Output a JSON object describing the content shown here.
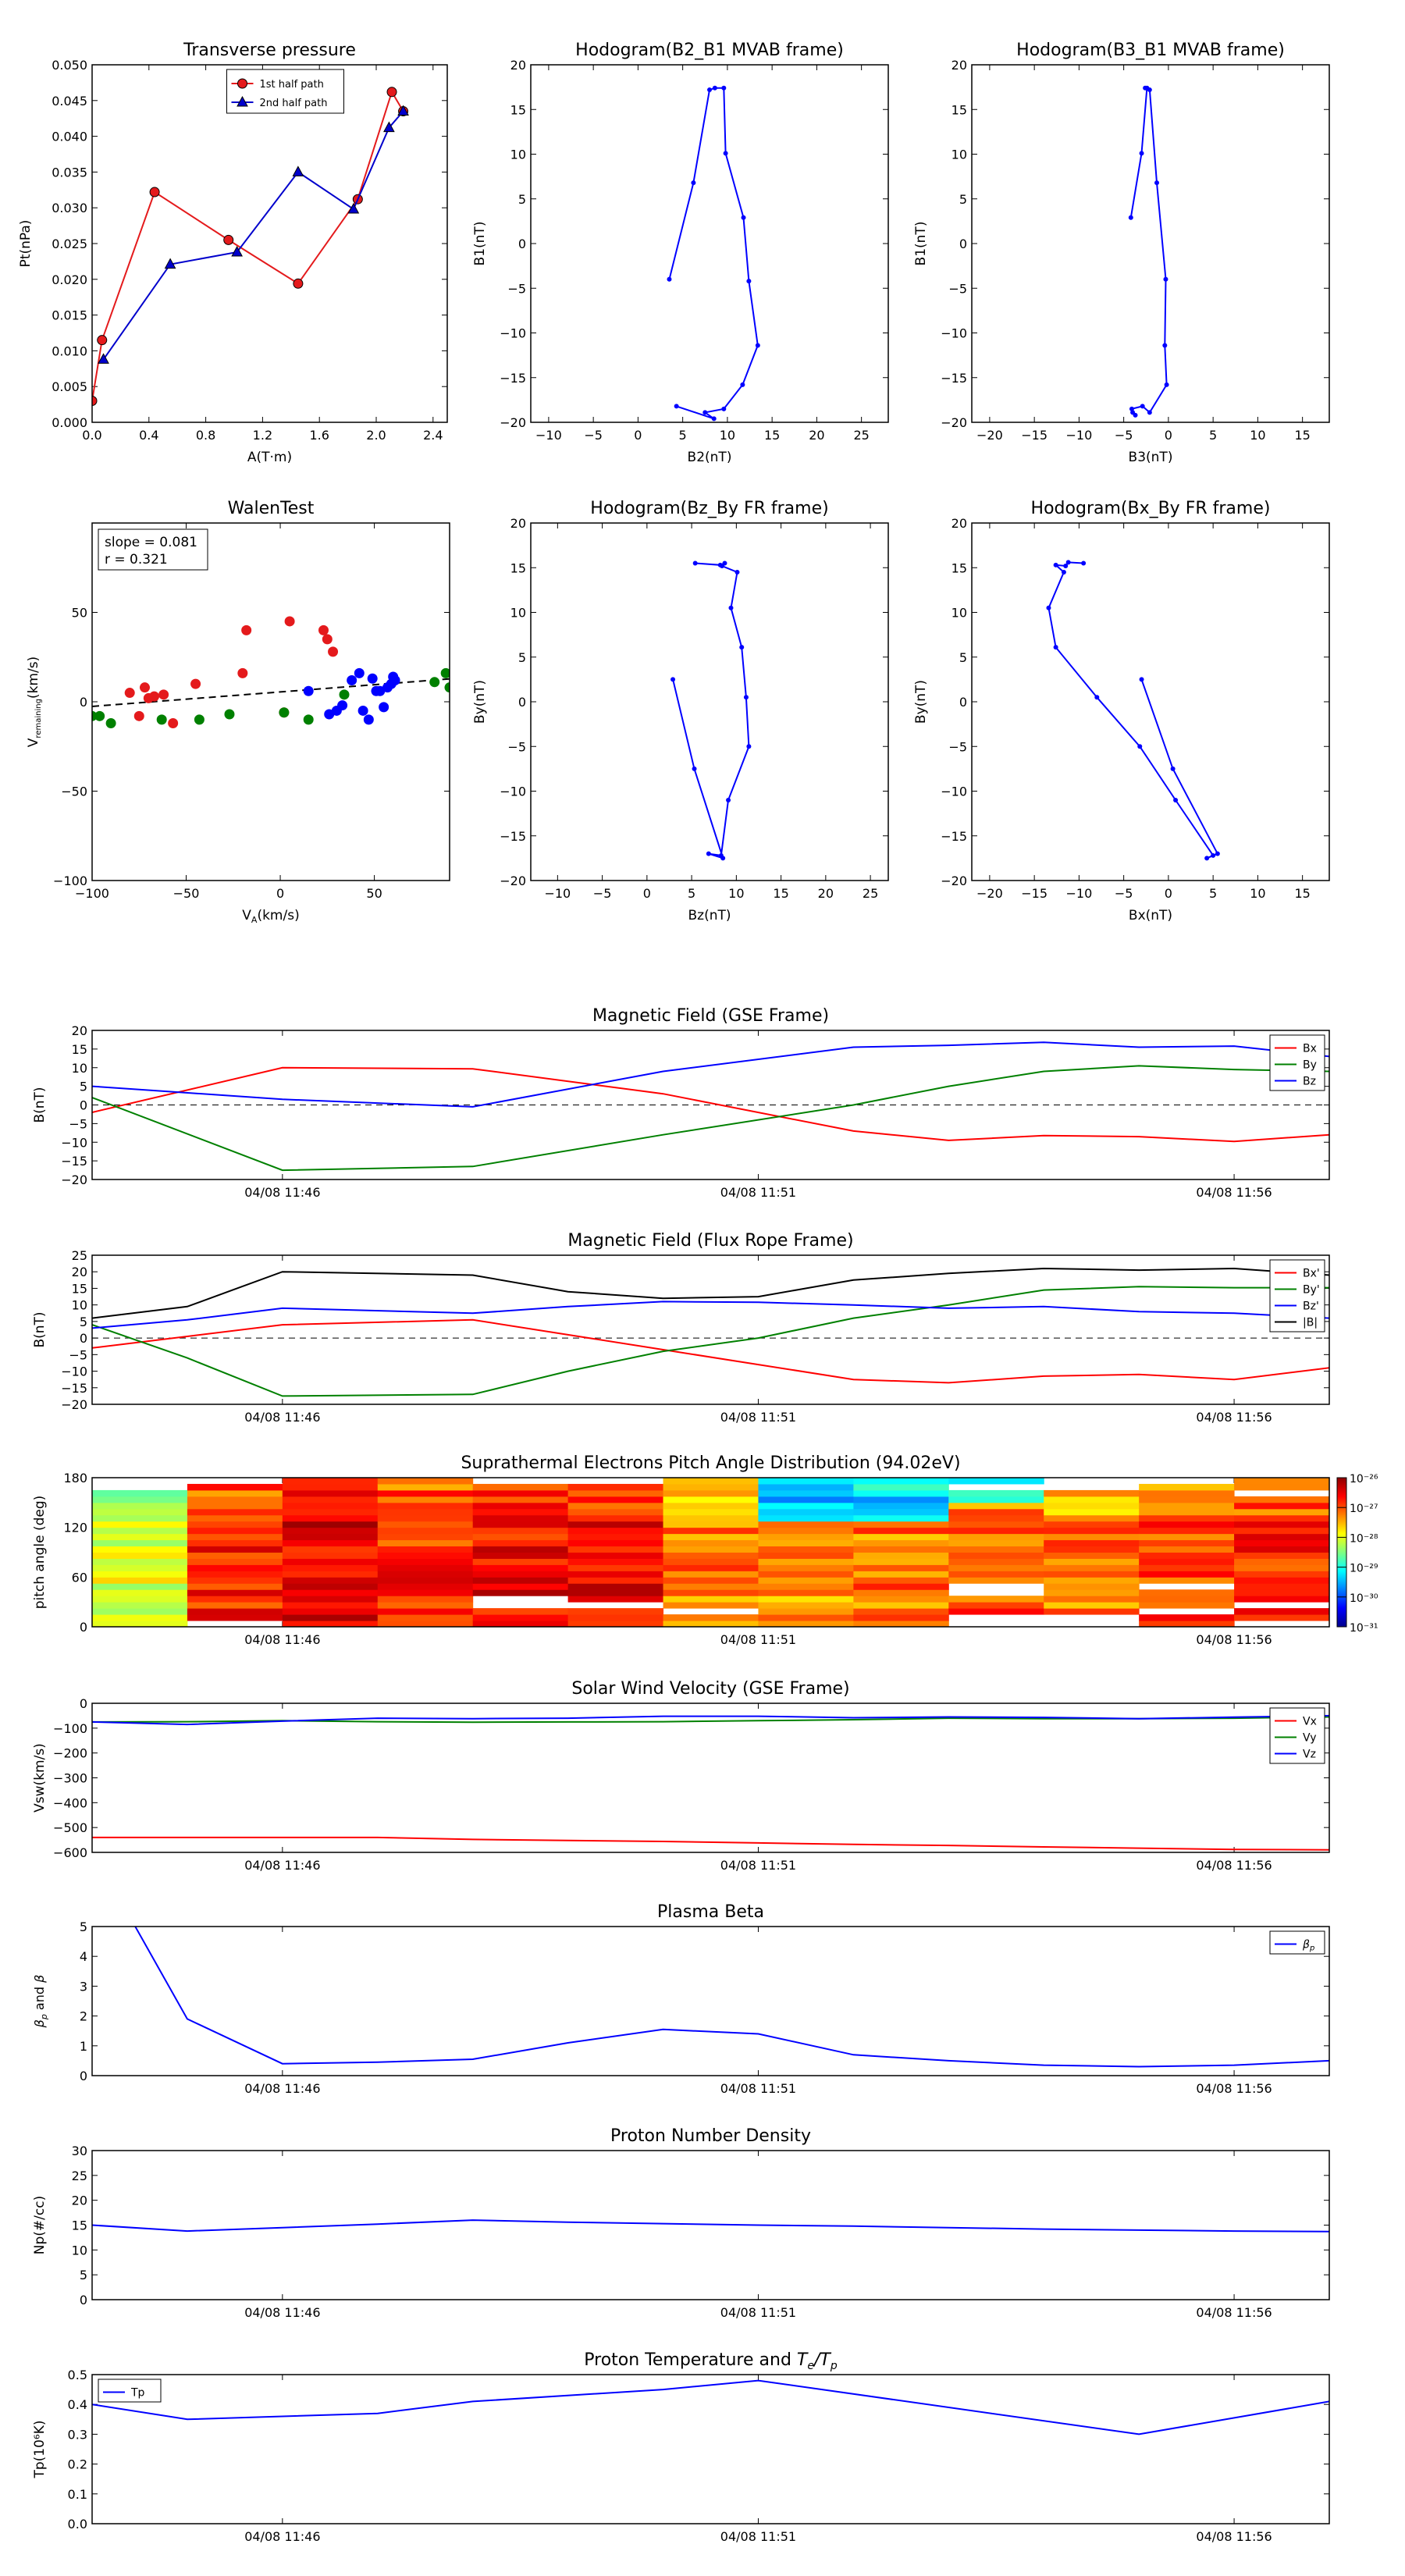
{
  "chart_data": [
    {
      "id": "tp",
      "type": "line",
      "title": "Transverse pressure",
      "xlabel": "A(T·m)",
      "ylabel": "Pt(nPa)",
      "xlim": [
        0,
        2.5
      ],
      "ylim": [
        0,
        0.05
      ],
      "xticks": [
        0.0,
        0.4,
        0.8,
        1.2,
        1.6,
        2.0,
        2.4
      ],
      "xticklabels": [
        "0.0",
        "0.4",
        "0.8",
        "1.2",
        "1.6",
        "2.0",
        "2.4"
      ],
      "yticks": [
        0,
        0.005,
        0.01,
        0.015,
        0.02,
        0.025,
        0.03,
        0.035,
        0.04,
        0.045,
        0.05
      ],
      "yticklabels": [
        "0.000",
        "0.005",
        "0.010",
        "0.015",
        "0.020",
        "0.025",
        "0.030",
        "0.035",
        "0.040",
        "0.045",
        "0.050"
      ],
      "legend": "top-center",
      "series": [
        {
          "name": "1st half path",
          "color": "#e41a1c",
          "marker": "circle",
          "x": [
            0.0,
            0.07,
            0.44,
            0.96,
            1.45,
            1.87,
            2.11,
            2.19
          ],
          "y": [
            0.003,
            0.0115,
            0.0322,
            0.0255,
            0.0194,
            0.0312,
            0.0462,
            0.0435
          ]
        },
        {
          "name": "2nd half path",
          "color": "#0000cc",
          "marker": "triangle",
          "x": [
            0.08,
            0.55,
            1.02,
            1.45,
            1.84,
            2.09,
            2.19
          ],
          "y": [
            0.0088,
            0.0221,
            0.0238,
            0.035,
            0.0298,
            0.0412,
            0.0435
          ]
        }
      ]
    },
    {
      "id": "h1",
      "type": "line",
      "title": "Hodogram(B2_B1 MVAB frame)",
      "xlabel": "B2(nT)",
      "ylabel": "B1(nT)",
      "xlim": [
        -12,
        28
      ],
      "ylim": [
        -20,
        20
      ],
      "xticks": [
        -10,
        -5,
        0,
        5,
        10,
        15,
        20,
        25
      ],
      "yticks": [
        -20,
        -15,
        -10,
        -5,
        0,
        5,
        10,
        15,
        20
      ],
      "series": [
        {
          "color": "#0000ff",
          "x": [
            3.5,
            6.2,
            8.0,
            8.6,
            9.6,
            9.8,
            11.8,
            12.4,
            13.4,
            11.7,
            9.6,
            7.5,
            8.5,
            4.3
          ],
          "y": [
            -4.0,
            6.8,
            17.2,
            17.4,
            17.4,
            10.1,
            2.9,
            -4.2,
            -11.4,
            -15.8,
            -18.5,
            -18.9,
            -19.6,
            -18.2
          ]
        }
      ]
    },
    {
      "id": "h2",
      "type": "line",
      "title": "Hodogram(B3_B1 MVAB frame)",
      "xlabel": "B3(nT)",
      "ylabel": "B1(nT)",
      "xlim": [
        -22,
        18
      ],
      "ylim": [
        -20,
        20
      ],
      "xticks": [
        -20,
        -15,
        -10,
        -5,
        0,
        5,
        10,
        15
      ],
      "yticks": [
        -20,
        -15,
        -10,
        -5,
        0,
        5,
        10,
        15,
        20
      ],
      "series": [
        {
          "color": "#0000ff",
          "x": [
            -4.2,
            -3.0,
            -2.4,
            -2.6,
            -2.1,
            -1.3,
            -0.3,
            -0.4,
            -0.2,
            -2.1,
            -2.9,
            -4.1,
            -3.7,
            -4.0
          ],
          "y": [
            2.9,
            10.1,
            17.4,
            17.4,
            17.2,
            6.8,
            -4.0,
            -11.4,
            -15.8,
            -18.9,
            -18.2,
            -18.5,
            -19.2,
            -18.9
          ]
        }
      ]
    },
    {
      "id": "walen",
      "type": "scatter",
      "title": "WalenTest",
      "xlabel": "V_A(km/s)",
      "ylabel": "V_remaining(km/s)",
      "xlim": [
        -100,
        90
      ],
      "ylim": [
        -100,
        100
      ],
      "xticks": [
        -100,
        -50,
        0,
        50
      ],
      "yticks": [
        -100,
        -50,
        0,
        50
      ],
      "annotation": [
        "slope = 0.081",
        "r = 0.321"
      ],
      "fit": {
        "slope": 0.081,
        "intercept": 5.5
      },
      "series": [
        {
          "color": "#e41a1c",
          "x": [
            -72,
            -67,
            -70,
            -75,
            -80,
            -62,
            -57,
            -45,
            -20,
            -18,
            2,
            5,
            23,
            25,
            28
          ],
          "y": [
            8,
            3,
            2,
            -8,
            5,
            4,
            -12,
            10,
            16,
            40,
            -6,
            45,
            40,
            35,
            28
          ]
        },
        {
          "color": "#008000",
          "x": [
            -100,
            -96,
            -90,
            -63,
            -43,
            -27,
            2,
            15,
            34,
            82,
            88,
            90
          ],
          "y": [
            -8,
            -8,
            -12,
            -10,
            -10,
            -7,
            -6,
            -10,
            4,
            11,
            16,
            8
          ]
        },
        {
          "color": "#0000ff",
          "x": [
            15,
            26,
            30,
            33,
            38,
            42,
            44,
            47,
            49,
            51,
            53,
            55,
            57,
            59,
            60,
            61
          ],
          "y": [
            6,
            -7,
            -5,
            -2,
            12,
            16,
            -5,
            -10,
            13,
            6,
            6,
            -3,
            8,
            10,
            14,
            12
          ]
        }
      ]
    },
    {
      "id": "h3",
      "type": "line",
      "title": "Hodogram(Bz_By FR frame)",
      "xlabel": "Bz(nT)",
      "ylabel": "By(nT)",
      "xlim": [
        -13,
        27
      ],
      "ylim": [
        -20,
        20
      ],
      "xticks": [
        -10,
        -5,
        0,
        5,
        10,
        15,
        20,
        25
      ],
      "yticks": [
        -20,
        -15,
        -10,
        -5,
        0,
        5,
        10,
        15,
        20
      ],
      "series": [
        {
          "color": "#0000ff",
          "x": [
            5.4,
            8.2,
            8.7,
            8.4,
            10.1,
            9.4,
            10.6,
            11.1,
            11.4,
            9.1,
            8.3,
            6.9,
            8.5,
            5.3,
            2.9
          ],
          "y": [
            15.5,
            15.3,
            15.5,
            15.2,
            14.5,
            10.5,
            6.1,
            0.5,
            -5.0,
            -11.0,
            -17.2,
            -17.0,
            -17.5,
            -7.5,
            2.5
          ]
        }
      ]
    },
    {
      "id": "h4",
      "type": "line",
      "title": "Hodogram(Bx_By FR frame)",
      "xlabel": "Bx(nT)",
      "ylabel": "By(nT)",
      "xlim": [
        -22,
        18
      ],
      "ylim": [
        -20,
        20
      ],
      "xticks": [
        -20,
        -15,
        -10,
        -5,
        0,
        5,
        10,
        15
      ],
      "yticks": [
        -20,
        -15,
        -10,
        -5,
        0,
        5,
        10,
        15,
        20
      ],
      "series": [
        {
          "color": "#0000ff",
          "x": [
            -9.5,
            -11.2,
            -11.5,
            -12.6,
            -11.7,
            -13.4,
            -12.6,
            -8.0,
            -3.2,
            0.8,
            5.0,
            4.3,
            5.5,
            0.5,
            -3.0
          ],
          "y": [
            15.5,
            15.6,
            15.2,
            15.3,
            14.5,
            10.5,
            6.1,
            0.5,
            -5.0,
            -11.0,
            -17.2,
            -17.5,
            -17.0,
            -7.5,
            2.5
          ]
        }
      ]
    },
    {
      "id": "bgse",
      "type": "line",
      "title": "Magnetic Field (GSE Frame)",
      "ylabel": "B(nT)",
      "ylim": [
        -20,
        20
      ],
      "yticks": [
        -20,
        -15,
        -10,
        -5,
        0,
        5,
        10,
        15,
        20
      ],
      "xticklabels": [
        "04/08 11:46",
        "04/08 11:51",
        "04/08 11:56"
      ],
      "zero_line": true,
      "legend": "top-right",
      "x": [
        0,
        2,
        4,
        6,
        8,
        9,
        10,
        11,
        12,
        13
      ],
      "series": [
        {
          "name": "Bx",
          "color": "#ff0000",
          "values": [
            -2,
            10,
            9.7,
            3,
            -7,
            -9.5,
            -8.2,
            -8.5,
            -9.8,
            -8
          ]
        },
        {
          "name": "By",
          "color": "#008000",
          "values": [
            2,
            -17.5,
            -16.5,
            -8,
            0,
            5,
            9,
            10.5,
            9.5,
            9
          ]
        },
        {
          "name": "Bz",
          "color": "#0000ff",
          "values": [
            5,
            1.5,
            -0.5,
            9,
            15.5,
            16,
            16.8,
            15.5,
            15.8,
            13
          ]
        }
      ]
    },
    {
      "id": "bfr",
      "type": "line",
      "title": "Magnetic Field (Flux Rope Frame)",
      "ylabel": "B(nT)",
      "ylim": [
        -20,
        25
      ],
      "yticks": [
        -20,
        -15,
        -10,
        -5,
        0,
        5,
        10,
        15,
        20,
        25
      ],
      "xticklabels": [
        "04/08 11:46",
        "04/08 11:51",
        "04/08 11:56"
      ],
      "zero_line": true,
      "legend": "top-right",
      "x": [
        0,
        1,
        2,
        4,
        5,
        6,
        7,
        8,
        9,
        10,
        11,
        12,
        13
      ],
      "series": [
        {
          "name": "Bx'",
          "color": "#ff0000",
          "values": [
            -3,
            0.5,
            4,
            5.5,
            1,
            -3.5,
            -8,
            -12.5,
            -13.5,
            -11.5,
            -11,
            -12.5,
            -9
          ]
        },
        {
          "name": "By'",
          "color": "#008000",
          "values": [
            4,
            -6,
            -17.5,
            -17,
            -10,
            -4,
            0,
            6,
            10,
            14.5,
            15.5,
            15.2,
            15.2
          ]
        },
        {
          "name": "Bz'",
          "color": "#0000ff",
          "values": [
            3,
            5.5,
            9,
            7.5,
            9.5,
            11,
            10.8,
            10,
            9,
            9.5,
            8,
            7.5,
            6
          ]
        },
        {
          "name": "|B|",
          "color": "#000000",
          "values": [
            6,
            9.5,
            20,
            19,
            14,
            12,
            12.5,
            17.5,
            19.5,
            21,
            20.5,
            21,
            19
          ]
        }
      ]
    },
    {
      "id": "pad",
      "type": "heatmap",
      "title": "Suprathermal Electrons Pitch Angle Distribution (94.02eV)",
      "ylabel": "pitch angle (deg)",
      "ylim": [
        0,
        180
      ],
      "yticks": [
        0,
        60,
        120,
        180
      ],
      "xticklabels": [
        "04/08 11:46",
        "04/08 11:51",
        "04/08 11:56"
      ],
      "colorbar": {
        "ticks": [
          "10⁻²⁶",
          "10⁻²⁷",
          "10⁻²⁸",
          "10⁻²⁹",
          "10⁻³⁰",
          "10⁻³¹"
        ],
        "log_min": -31,
        "log_max": -26
      },
      "columns": 13,
      "rows": 24,
      "bin_values": [
        [
          -29.0,
          -28.0,
          -27.0,
          -27.2,
          -27.0,
          -26.6,
          -27.0,
          -27.4,
          -27.2,
          -27.0,
          -27.2,
          -27.0,
          -26.8
        ],
        [
          -28.0,
          -26.8,
          -26.5,
          -26.8,
          -26.6,
          -26.5,
          -27.2,
          -27.4,
          -27.2,
          -27.0,
          -27.2,
          -27.0,
          -26.8
        ]
      ]
    },
    {
      "id": "vsw",
      "type": "line",
      "title": "Solar Wind Velocity (GSE Frame)",
      "ylabel": "Vsw(km/s)",
      "ylim": [
        -600,
        0
      ],
      "yticks": [
        -600,
        -500,
        -400,
        -300,
        -200,
        -100,
        0
      ],
      "xticklabels": [
        "04/08 11:46",
        "04/08 11:51",
        "04/08 11:56"
      ],
      "legend": "top-right",
      "x": [
        0,
        1,
        2,
        3,
        4,
        5,
        6,
        7,
        8,
        9,
        10,
        11,
        12,
        13
      ],
      "series": [
        {
          "name": "Vx",
          "color": "#ff0000",
          "values": [
            -540,
            -540,
            -540,
            -540,
            -548,
            -552,
            -556,
            -562,
            -568,
            -572,
            -578,
            -583,
            -588,
            -590
          ]
        },
        {
          "name": "Vy",
          "color": "#008000",
          "values": [
            -75,
            -74,
            -70,
            -74,
            -76,
            -75,
            -74,
            -70,
            -66,
            -60,
            -62,
            -62,
            -60,
            -55
          ]
        },
        {
          "name": "Vz",
          "color": "#0000ff",
          "values": [
            -75,
            -85,
            -72,
            -60,
            -62,
            -60,
            -52,
            -52,
            -58,
            -55,
            -57,
            -62,
            -56,
            -50
          ]
        }
      ]
    },
    {
      "id": "beta",
      "type": "line",
      "title": "Plasma Beta",
      "ylabel": "βp and β",
      "ylim": [
        0,
        5
      ],
      "yticks": [
        0,
        1,
        2,
        3,
        4,
        5
      ],
      "xticklabels": [
        "04/08 11:46",
        "04/08 11:51",
        "04/08 11:56"
      ],
      "legend": "top-right",
      "x": [
        0.4,
        1,
        2,
        3,
        4,
        5,
        6,
        7,
        8,
        9,
        10,
        11,
        12,
        13
      ],
      "series": [
        {
          "name": "βp",
          "color": "#0000ff",
          "values": [
            5.3,
            1.9,
            0.4,
            0.45,
            0.55,
            1.1,
            1.55,
            1.4,
            0.7,
            0.5,
            0.35,
            0.3,
            0.35,
            0.5
          ]
        }
      ]
    },
    {
      "id": "np",
      "type": "line",
      "title": "Proton Number Density",
      "ylabel": "Np(#/cc)",
      "ylim": [
        0,
        30
      ],
      "yticks": [
        0,
        5,
        10,
        15,
        20,
        25,
        30
      ],
      "xticklabels": [
        "04/08 11:46",
        "04/08 11:51",
        "04/08 11:56"
      ],
      "x": [
        0,
        1,
        2,
        3,
        4,
        5,
        6,
        7,
        8,
        9,
        10,
        11,
        12,
        13
      ],
      "series": [
        {
          "color": "#0000ff",
          "values": [
            15,
            13.8,
            14.5,
            15.2,
            16,
            15.6,
            15.3,
            15,
            14.8,
            14.5,
            14.2,
            14,
            13.8,
            13.7
          ]
        }
      ]
    },
    {
      "id": "tpr",
      "type": "line",
      "title": "Proton Temperature and T_e/T_p",
      "ylabel": "Tp(10⁶K)",
      "ylim": [
        0,
        0.5
      ],
      "yticks": [
        0,
        0.1,
        0.2,
        0.3,
        0.4,
        0.5
      ],
      "yticklabels": [
        "0.0",
        "0.1",
        "0.2",
        "0.3",
        "0.4",
        "0.5"
      ],
      "xticklabels": [
        "04/08 11:46",
        "04/08 11:51",
        "04/08 11:56"
      ],
      "legend": "top-left",
      "x": [
        0,
        1,
        3,
        4,
        6,
        7,
        11,
        13
      ],
      "series": [
        {
          "name": "Tp",
          "color": "#0000ff",
          "values": [
            0.4,
            0.35,
            0.37,
            0.41,
            0.45,
            0.48,
            0.3,
            0.41
          ]
        }
      ]
    }
  ]
}
